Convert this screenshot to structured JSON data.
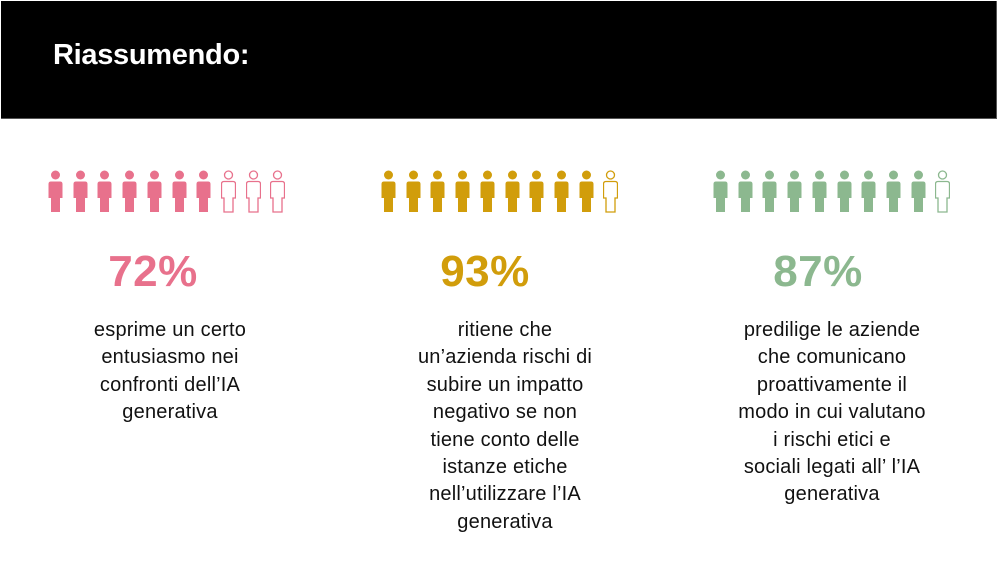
{
  "header": {
    "title": "Riassumendo:"
  },
  "colors": {
    "header_bg": "#000000",
    "pink": "#E8718C",
    "gold": "#D19D0B",
    "green": "#8CB88F",
    "text": "#111111"
  },
  "stats": [
    {
      "percent": "72%",
      "filled_icons": 7,
      "total_icons": 10,
      "color": "#E8718C",
      "lines": [
        "esprime un certo",
        "entusiasmo nei",
        "confronti dell’IA",
        "generativa"
      ]
    },
    {
      "percent": "93%",
      "filled_icons": 9,
      "total_icons": 10,
      "color": "#D19D0B",
      "lines": [
        "ritiene che",
        "un’azienda rischi di",
        "subire un impatto",
        "negativo se non",
        "tiene conto delle",
        "istanze etiche",
        "nell’utilizzare l’IA",
        "generativa"
      ]
    },
    {
      "percent": "87%",
      "filled_icons": 9,
      "total_icons": 10,
      "color": "#8CB88F",
      "lines": [
        "predilige le aziende",
        "che comunicano",
        "proattivamente il",
        "modo in cui valutano",
        "i rischi etici e",
        "sociali legati all’ l’IA",
        "generativa"
      ]
    }
  ],
  "icons": {
    "filled": "person-filled-icon",
    "outline": "person-outline-icon"
  }
}
